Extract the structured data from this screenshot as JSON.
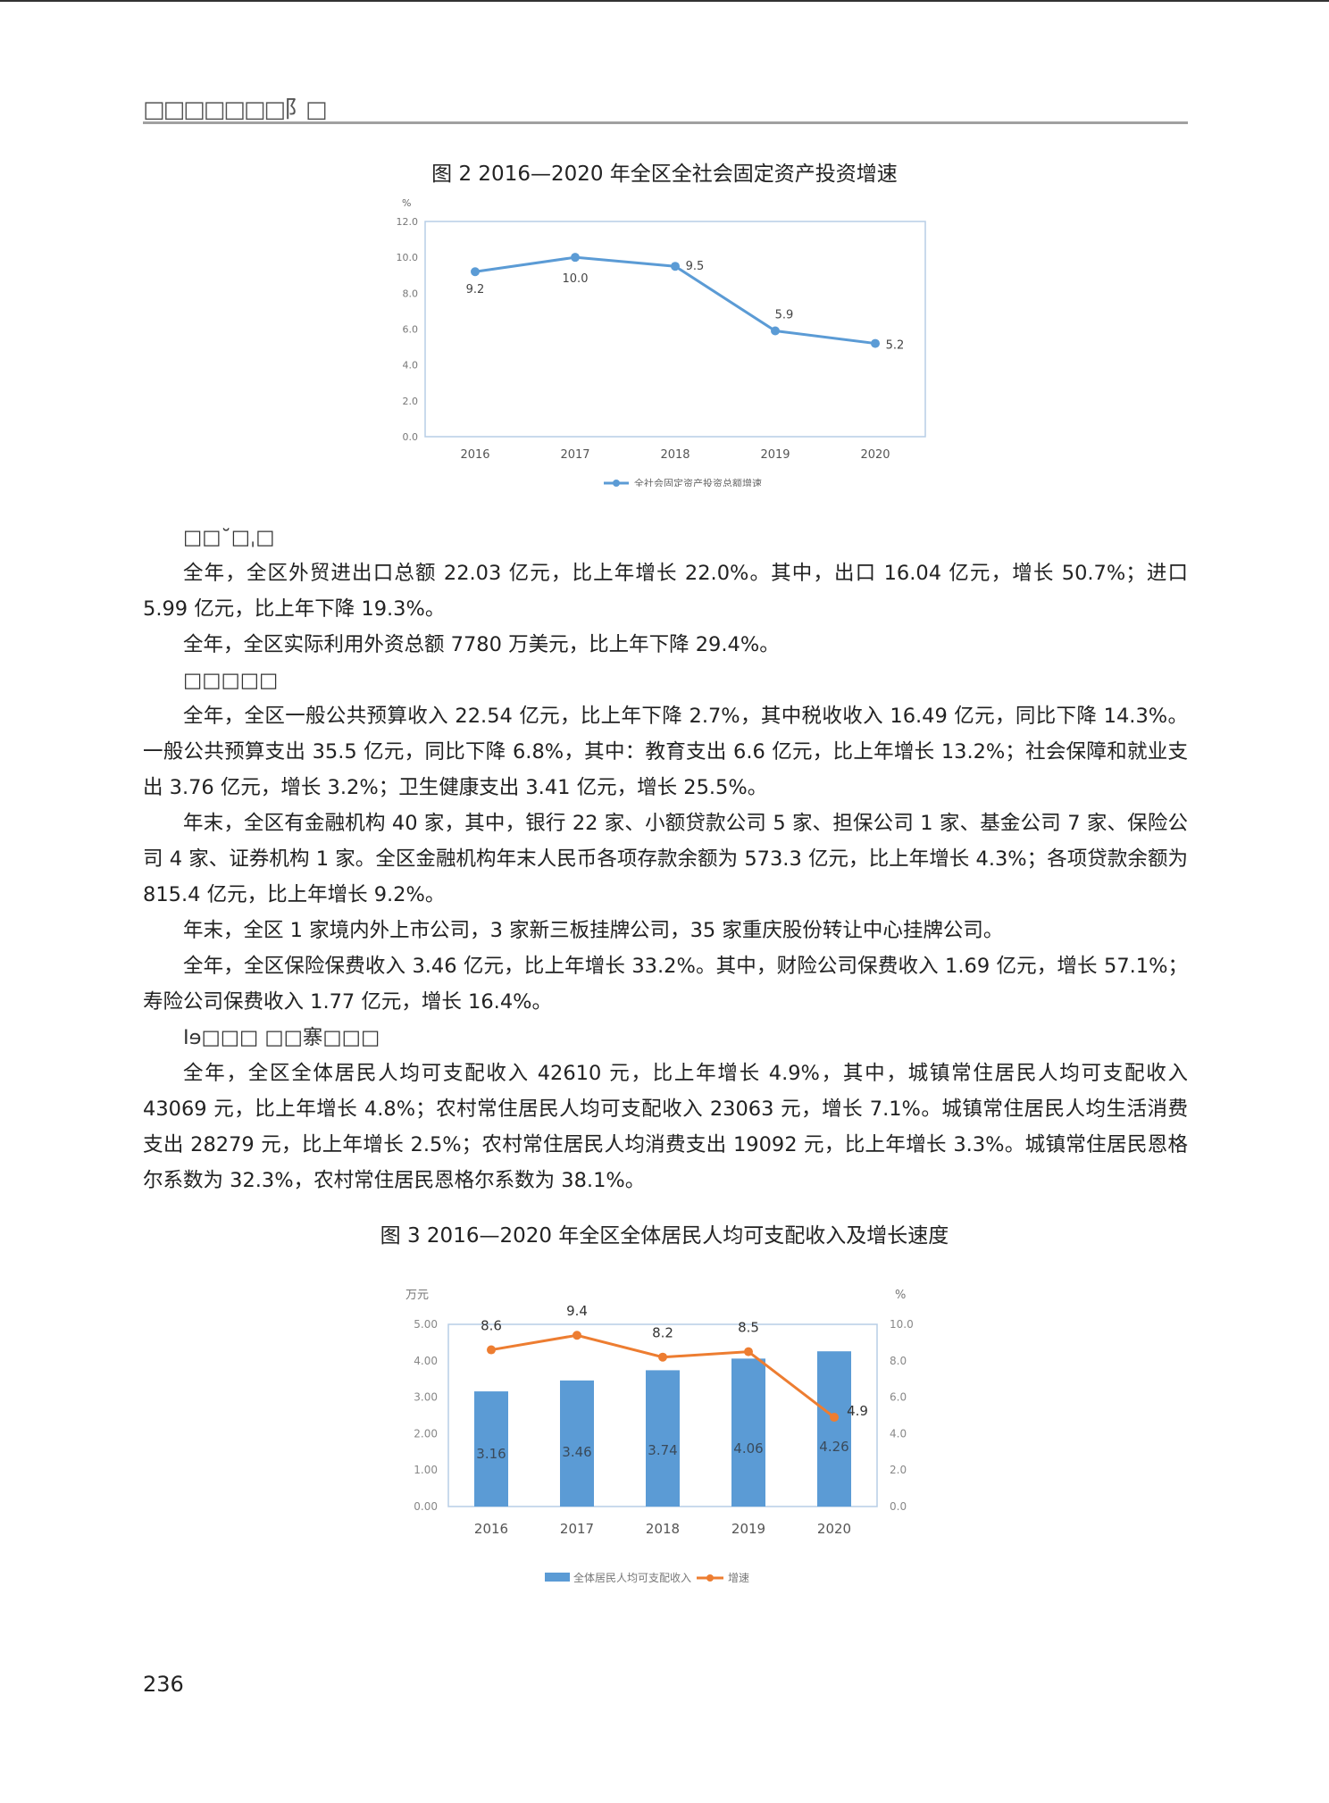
{
  "header": {
    "running_title": "□□□□□□□阝□"
  },
  "figure2": {
    "title": "图 2 2016—2020 年全区全社会固定资产投资增速"
  },
  "chart_data": [
    {
      "type": "line",
      "title": "图 2 2016—2020 年全区全社会固定资产投资增速",
      "ylabel": "%",
      "ylim": [
        0,
        12
      ],
      "yticks": [
        "0.0",
        "2.0",
        "4.0",
        "6.0",
        "8.0",
        "10.0",
        "12.0"
      ],
      "categories": [
        "2016",
        "2017",
        "2018",
        "2019",
        "2020"
      ],
      "series": [
        {
          "name": "全社会固定资产投资总额增速",
          "values": [
            9.2,
            10.0,
            9.5,
            5.9,
            5.2
          ],
          "labels": [
            "9.2",
            "10.0",
            "9.5",
            "5.9",
            "5.2"
          ],
          "color": "#5b9bd5"
        }
      ],
      "grid": false,
      "legend": "bottom"
    },
    {
      "type": "bar+line",
      "title": "图 3 2016—2020 年全区全体居民人均可支配收入及增长速度",
      "ylabel": "万元",
      "y2label": "%",
      "ylim": [
        0,
        5
      ],
      "y2lim": [
        0,
        10
      ],
      "yticks": [
        "0.00",
        "1.00",
        "2.00",
        "3.00",
        "4.00",
        "5.00"
      ],
      "y2ticks": [
        "0.0",
        "2.0",
        "4.0",
        "6.0",
        "8.0",
        "10.0"
      ],
      "categories": [
        "2016",
        "2017",
        "2018",
        "2019",
        "2020"
      ],
      "series": [
        {
          "name": "全体居民人均可支配收入",
          "type": "bar",
          "values": [
            3.16,
            3.46,
            3.74,
            4.06,
            4.26
          ],
          "labels": [
            "3.16",
            "3.46",
            "3.74",
            "4.06",
            "4.26"
          ],
          "color": "#5b9bd5"
        },
        {
          "name": "增速",
          "type": "line",
          "axis": "right",
          "values": [
            8.6,
            9.4,
            8.2,
            8.5,
            4.9
          ],
          "labels": [
            "8.6",
            "9.4",
            "8.2",
            "8.5",
            "4.9"
          ],
          "color": "#ed7d31"
        }
      ],
      "grid": false,
      "legend": "bottom"
    }
  ],
  "sections": [
    {
      "heading": "□□˘□ˌ□",
      "paragraphs": [
        "全年，全区外贸进出口总额 22.03 亿元，比上年增长 22.0%。其中，出口 16.04 亿元，增长 50.7%；进口 5.99 亿元，比上年下降 19.3%。",
        "全年，全区实际利用外资总额 7780 万美元，比上年下降 29.4%。"
      ]
    },
    {
      "heading": "□□□□□",
      "paragraphs": [
        "全年，全区一般公共预算收入 22.54 亿元，比上年下降 2.7%，其中税收收入 16.49 亿元，同比下降 14.3%。一般公共预算支出 35.5 亿元，同比下降 6.8%，其中：教育支出 6.6 亿元，比上年增长 13.2%；社会保障和就业支出 3.76 亿元，增长 3.2%；卫生健康支出 3.41 亿元，增长 25.5%。",
        "年末，全区有金融机构 40 家，其中，银行 22 家、小额贷款公司 5 家、担保公司 1 家、基金公司 7 家、保险公司 4 家、证券机构 1 家。全区金融机构年末人民币各项存款余额为 573.3 亿元，比上年增长 4.3%；各项贷款余额为 815.4 亿元，比上年增长 9.2%。",
        "年末，全区 1 家境内外上市公司，3 家新三板挂牌公司，35 家重庆股份转让中心挂牌公司。",
        "全年，全区保险保费收入 3.46 亿元，比上年增长 33.2%。其中，财险公司保费收入 1.69 亿元，增长 57.1%；寿险公司保费收入 1.77 亿元，增长 16.4%。"
      ]
    },
    {
      "heading": "Ⅰɘ□□□ □□寨□□□",
      "paragraphs": [
        "全年，全区全体居民人均可支配收入 42610 元，比上年增长 4.9%，其中，城镇常住居民人均可支配收入 43069 元，比上年增长 4.8%；农村常住居民人均可支配收入 23063 元，增长 7.1%。城镇常住居民人均生活消费支出 28279 元，比上年增长 2.5%；农村常住居民人均消费支出 19092 元，比上年增长 3.3%。城镇常住居民恩格尔系数为 32.3%，农村常住居民恩格尔系数为 38.1%。"
      ]
    }
  ],
  "figure3": {
    "title": "图 3 2016—2020 年全区全体居民人均可支配收入及增长速度"
  },
  "footer": {
    "page_number": "236"
  }
}
